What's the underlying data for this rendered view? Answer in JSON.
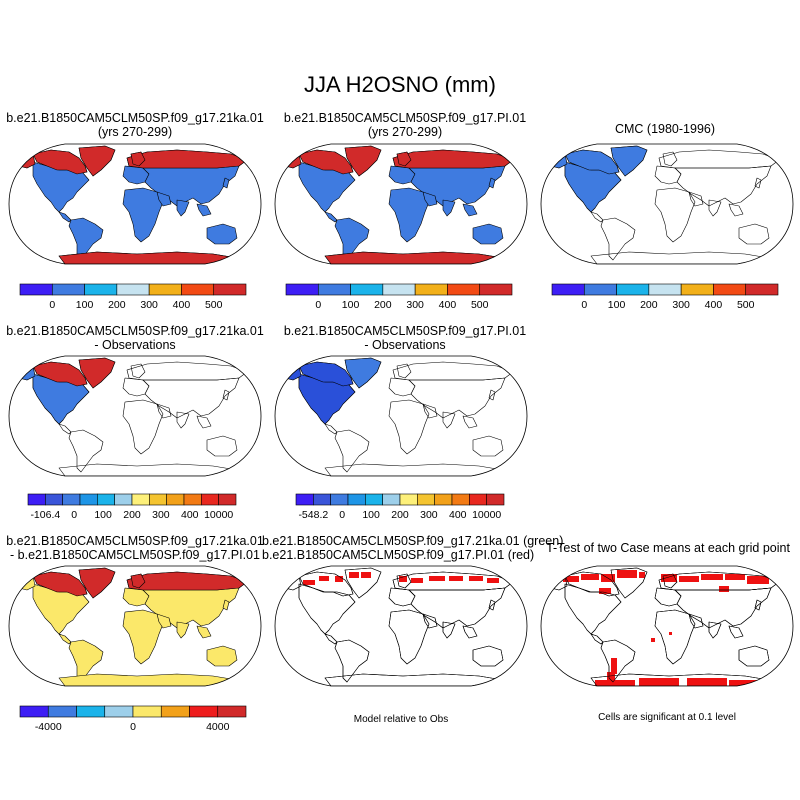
{
  "chart_data": {
    "type": "map-panel-grid",
    "title": "JJA H2OSNO (mm)",
    "colors": {
      "cb_abs": [
        "#3d1ef5",
        "#3f7be0",
        "#1bb3ea",
        "#c6e3f0",
        "#f2b01a",
        "#f24a14",
        "#d12a2a"
      ],
      "cb_diff": [
        "#3d1ef5",
        "#3a55d9",
        "#3f7be0",
        "#1e95e6",
        "#1bb3ea",
        "#9dcfea",
        "#fdf07a",
        "#f4c430",
        "#f2a11a",
        "#f27a14",
        "#e8281f",
        "#d12a2a"
      ],
      "cb_cc": [
        "#3d1ef5",
        "#3f7be0",
        "#1bb3ea",
        "#9dcfea",
        "#fbe86a",
        "#f2a11a",
        "#ee1c1c",
        "#d12a2a"
      ],
      "land_blue": "#3f7be0",
      "land_blue2": "#2a50d9",
      "land_red": "#d12a2a",
      "land_yellow": "#fbe86a",
      "sig_red": "#ee1111",
      "coast": "#000000"
    },
    "panels": [
      {
        "id": "p1",
        "title_line1": "b.e21.B1850CAM5CLM50SP.f09_g17.21ka.01",
        "title_line2": "(yrs 270-299)",
        "fill": "abs",
        "colorbar": "abs"
      },
      {
        "id": "p2",
        "title_line1": "b.e21.B1850CAM5CLM50SP.f09_g17.PI.01",
        "title_line2": "(yrs 270-299)",
        "fill": "abs",
        "colorbar": "abs"
      },
      {
        "id": "p3",
        "title_line1": "CMC (1980-1996)",
        "title_line2": "",
        "fill": "obs",
        "colorbar": "abs"
      },
      {
        "id": "p4",
        "title_line1": "b.e21.B1850CAM5CLM50SP.f09_g17.21ka.01",
        "title_line2": "- Observations",
        "fill": "diff",
        "colorbar": "diff1"
      },
      {
        "id": "p5",
        "title_line1": "b.e21.B1850CAM5CLM50SP.f09_g17.PI.01",
        "title_line2": "- Observations",
        "fill": "diff2",
        "colorbar": "diff2"
      },
      {
        "id": "p6",
        "title_line1": "b.e21.B1850CAM5CLM50SP.f09_g17.21ka.01",
        "title_line2": "- b.e21.B1850CAM5CLM50SP.f09_g17.PI.01",
        "fill": "casediff",
        "colorbar": "cc"
      },
      {
        "id": "p7",
        "title_line1": "b.e21.B1850CAM5CLM50SP.f09_g17.21ka.01 (green)",
        "title_line2": "b.e21.B1850CAM5CLM50SP.f09_g17.PI.01 (red)",
        "fill": "rel",
        "note": "Model relative to Obs"
      },
      {
        "id": "p8",
        "title_line1": "T-Test of two Case means at each grid point",
        "title_line2": "",
        "fill": "ttest",
        "note": "Cells are significant at 0.1 level"
      }
    ],
    "colorbars": {
      "abs": {
        "ticks": [
          "0",
          "100",
          "200",
          "300",
          "400",
          "500"
        ]
      },
      "diff1": {
        "ticks": [
          "-106.4",
          "0",
          "100",
          "200",
          "300",
          "400",
          "10000"
        ]
      },
      "diff2": {
        "ticks": [
          "-548.2",
          "0",
          "100",
          "200",
          "300",
          "400",
          "10000"
        ]
      },
      "cc": {
        "ticks": [
          "-4000",
          "0",
          "4000"
        ]
      }
    }
  }
}
